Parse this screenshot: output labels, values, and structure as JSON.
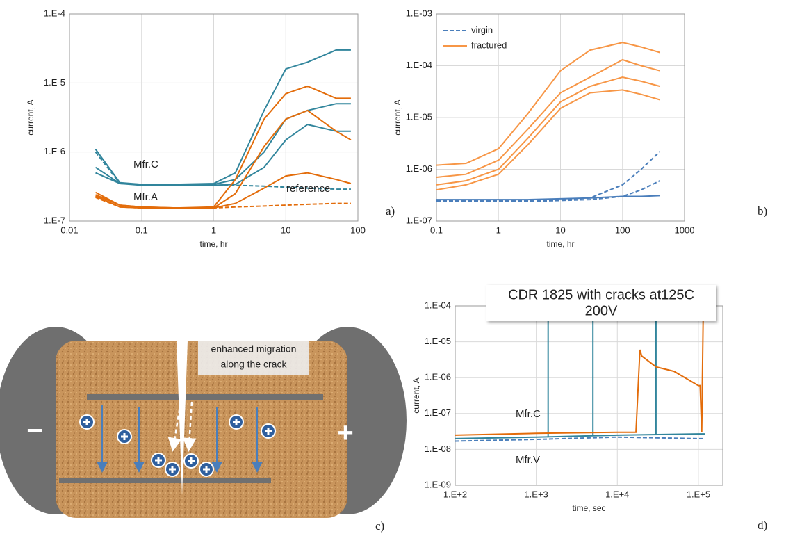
{
  "chart_data": [
    {
      "type": "line",
      "panel_label": "a)",
      "xlabel": "time, hr",
      "ylabel": "current, A",
      "log_x": true,
      "log_y": true,
      "grid": true,
      "xlim": [
        0.01,
        100
      ],
      "xticks": [
        0.01,
        0.1,
        1,
        10,
        100
      ],
      "ylim": [
        1e-07,
        0.0001
      ],
      "yticks": [
        {
          "value": 1e-07,
          "label": "1.E-7"
        },
        {
          "value": 1e-06,
          "label": "1.E-6"
        },
        {
          "value": 1e-05,
          "label": "1.E-5"
        },
        {
          "value": 0.0001,
          "label": "1.E-4"
        }
      ],
      "x": [
        0.023,
        0.05,
        0.1,
        0.3,
        1,
        2,
        5,
        10,
        20,
        50,
        80
      ],
      "series": [
        {
          "color": "#31859c",
          "style": "solid",
          "values": [
            1.1e-06,
            3.6e-07,
            3.4e-07,
            3.4e-07,
            3.5e-07,
            5e-07,
            4e-06,
            1.6e-05,
            2e-05,
            3e-05,
            3e-05
          ]
        },
        {
          "color": "#31859c",
          "style": "solid",
          "values": [
            6e-07,
            3.5e-07,
            3.4e-07,
            3.3e-07,
            3.4e-07,
            4e-07,
            1e-06,
            3e-06,
            4e-06,
            5e-06,
            5e-06
          ]
        },
        {
          "color": "#31859c",
          "style": "solid",
          "values": [
            5e-07,
            3.5e-07,
            3.3e-07,
            3.3e-07,
            3.3e-07,
            3.4e-07,
            6e-07,
            1.5e-06,
            2.5e-06,
            2e-06,
            2e-06
          ]
        },
        {
          "color": "#31859c",
          "style": "dashed",
          "values": [
            1e-06,
            3.5e-07,
            3.4e-07,
            3.3e-07,
            3.3e-07,
            3.3e-07,
            3.2e-07,
            3.1e-07,
            3e-07,
            2.9e-07,
            2.9e-07
          ]
        },
        {
          "color": "#e36c0a",
          "style": "solid",
          "values": [
            2.6e-07,
            1.7e-07,
            1.6e-07,
            1.55e-07,
            1.6e-07,
            4e-07,
            3e-06,
            7e-06,
            9e-06,
            6e-06,
            6e-06
          ]
        },
        {
          "color": "#e36c0a",
          "style": "solid",
          "values": [
            2.4e-07,
            1.7e-07,
            1.6e-07,
            1.55e-07,
            1.55e-07,
            2.5e-07,
            1.2e-06,
            3e-06,
            4e-06,
            2e-06,
            1.5e-06
          ]
        },
        {
          "color": "#e36c0a",
          "style": "solid",
          "values": [
            2.3e-07,
            1.6e-07,
            1.55e-07,
            1.55e-07,
            1.55e-07,
            1.8e-07,
            3e-07,
            4.5e-07,
            5e-07,
            4e-07,
            3.5e-07
          ]
        },
        {
          "color": "#e36c0a",
          "style": "dashed",
          "values": [
            2.2e-07,
            1.6e-07,
            1.55e-07,
            1.55e-07,
            1.55e-07,
            1.6e-07,
            1.65e-07,
            1.7e-07,
            1.75e-07,
            1.8e-07,
            1.8e-07
          ]
        }
      ],
      "annotations": [
        "Mfr.C",
        "Mfr.A",
        "reference"
      ]
    },
    {
      "type": "line",
      "panel_label": "b)",
      "xlabel": "time, hr",
      "ylabel": "current, A",
      "log_x": true,
      "log_y": true,
      "grid": true,
      "legend": "upper left",
      "xlim": [
        0.1,
        1000
      ],
      "xticks": [
        0.1,
        1,
        10,
        100,
        1000
      ],
      "ylim": [
        1e-07,
        0.001
      ],
      "yticks": [
        {
          "value": 1e-07,
          "label": "1.E-07"
        },
        {
          "value": 1e-06,
          "label": "1.E-06"
        },
        {
          "value": 1e-05,
          "label": "1.E-05"
        },
        {
          "value": 0.0001,
          "label": "1.E-04"
        },
        {
          "value": 0.001,
          "label": "1.E-03"
        }
      ],
      "x": [
        0.1,
        0.3,
        1,
        3,
        10,
        30,
        100,
        200,
        400
      ],
      "series": [
        {
          "name": "virgin",
          "color": "#4a7ebb",
          "style": "dashed",
          "values": [
            2.5e-07,
            2.5e-07,
            2.5e-07,
            2.5e-07,
            2.6e-07,
            2.8e-07,
            5e-07,
            1e-06,
            2.2e-06
          ]
        },
        {
          "name": "fractured",
          "color": "#f79646",
          "style": "solid",
          "values": [
            1.2e-06,
            1.3e-06,
            2.5e-06,
            1.2e-05,
            8e-05,
            0.0002,
            0.00028,
            0.00023,
            0.00018
          ]
        },
        {
          "color": "#f79646",
          "style": "solid",
          "values": [
            7e-07,
            8e-07,
            1.5e-06,
            6e-06,
            3e-05,
            6e-05,
            0.00013,
            0.0001,
            8e-05
          ]
        },
        {
          "color": "#f79646",
          "style": "solid",
          "values": [
            5e-07,
            6e-07,
            1e-06,
            4e-06,
            2e-05,
            4e-05,
            6e-05,
            5e-05,
            4e-05
          ]
        },
        {
          "color": "#f79646",
          "style": "solid",
          "values": [
            4e-07,
            5e-07,
            8e-07,
            3e-06,
            1.5e-05,
            3e-05,
            3.4e-05,
            2.8e-05,
            2.2e-05
          ]
        },
        {
          "color": "#4a7ebb",
          "style": "solid",
          "values": [
            2.6e-07,
            2.6e-07,
            2.6e-07,
            2.6e-07,
            2.7e-07,
            2.8e-07,
            3e-07,
            3e-07,
            3.1e-07
          ]
        },
        {
          "color": "#4a7ebb",
          "style": "dashed",
          "values": [
            2.4e-07,
            2.4e-07,
            2.4e-07,
            2.4e-07,
            2.5e-07,
            2.6e-07,
            3e-07,
            4e-07,
            6e-07
          ]
        }
      ]
    },
    {
      "type": "line",
      "panel_label": "d)",
      "title": "CDR 1825 with cracks at125C",
      "subtitle": "200V",
      "xlabel": "time, sec",
      "ylabel": "current, A",
      "log_x": true,
      "log_y": true,
      "grid": true,
      "xlim": [
        100,
        200000
      ],
      "xticks": [
        {
          "value": 100,
          "label": "1.E+2"
        },
        {
          "value": 1000,
          "label": "1.E+3"
        },
        {
          "value": 10000,
          "label": "1.E+4"
        },
        {
          "value": 100000,
          "label": "1.E+5"
        }
      ],
      "ylim": [
        1e-09,
        0.0001
      ],
      "yticks": [
        {
          "value": 1e-09,
          "label": "1.E-09"
        },
        {
          "value": 1e-08,
          "label": "1.E-08"
        },
        {
          "value": 1e-07,
          "label": "1.E-07"
        },
        {
          "value": 1e-06,
          "label": "1.E-06"
        },
        {
          "value": 1e-05,
          "label": "1.E-05"
        },
        {
          "value": 0.0001,
          "label": "1.E-04"
        }
      ],
      "series": [
        {
          "color": "#31859c",
          "style": "solid",
          "x": [
            100,
            1000,
            10000,
            100000,
            120000
          ],
          "values": [
            2e-08,
            2.2e-08,
            2.5e-08,
            2.7e-08,
            2.7e-08
          ]
        },
        {
          "color": "#31859c",
          "style": "solid",
          "x": [
            1400,
            1400
          ],
          "values": [
            2.3e-08,
            0.0001
          ]
        },
        {
          "color": "#31859c",
          "style": "solid",
          "x": [
            5000,
            5000
          ],
          "values": [
            2.4e-08,
            0.0001
          ]
        },
        {
          "color": "#31859c",
          "style": "solid",
          "x": [
            30000,
            30000
          ],
          "values": [
            2.6e-08,
            0.0001
          ]
        },
        {
          "color": "#4a7ebb",
          "style": "dashed",
          "x": [
            100,
            1000,
            10000,
            100000,
            120000
          ],
          "values": [
            1.7e-08,
            1.9e-08,
            2.2e-08,
            2e-08,
            2e-08
          ]
        },
        {
          "color": "#e36c0a",
          "style": "solid",
          "x": [
            100,
            1000,
            10000,
            17000,
            19000,
            20000,
            30000,
            50000,
            100000,
            105000,
            110000,
            115000
          ],
          "values": [
            2.5e-08,
            2.8e-08,
            3e-08,
            3e-08,
            6e-06,
            4e-06,
            2e-06,
            1.5e-06,
            6e-07,
            6e-07,
            3e-08,
            0.0001
          ]
        }
      ],
      "annotations": [
        "Mfr.C",
        "Mfr.V"
      ]
    }
  ],
  "diagram": {
    "minus": "−",
    "plus": "+",
    "note": [
      "enhanced migration",
      "along the crack"
    ],
    "panel_label": "c)"
  }
}
